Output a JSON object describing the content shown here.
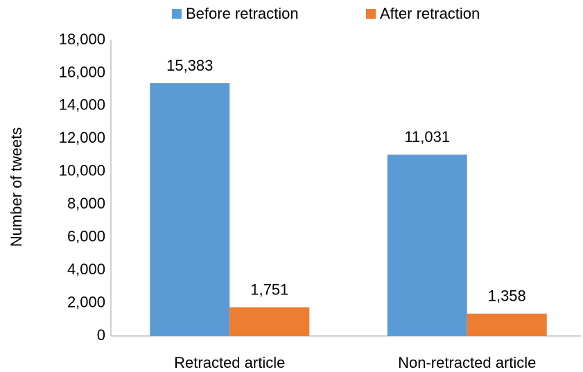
{
  "chart_data": {
    "type": "bar",
    "categories": [
      "Retracted article",
      "Non-retracted article"
    ],
    "series": [
      {
        "name": "Before retraction",
        "color": "#5b9bd5",
        "values": [
          15383,
          11031
        ],
        "value_labels": [
          "15,383",
          "11,031"
        ]
      },
      {
        "name": "After retraction",
        "color": "#ed7d31",
        "values": [
          1751,
          1358
        ],
        "value_labels": [
          "1,751",
          "1,358"
        ]
      }
    ],
    "y_label": "Number of tweets",
    "ylim": [
      0,
      18000
    ],
    "yticks": [
      0,
      {
        "value": 2000,
        "label": "2,000"
      },
      {
        "value": 4000,
        "label": "4,000"
      },
      {
        "value": 6000,
        "label": "6,000"
      },
      {
        "value": 8000,
        "label": "8,000"
      },
      {
        "value": 10000,
        "label": "10,000"
      },
      {
        "value": 12000,
        "label": "12,000"
      },
      {
        "value": 14000,
        "label": "14,000"
      },
      {
        "value": 16000,
        "label": "16,000"
      },
      {
        "value": 18000,
        "label": "18,000"
      }
    ],
    "legend": "top"
  }
}
